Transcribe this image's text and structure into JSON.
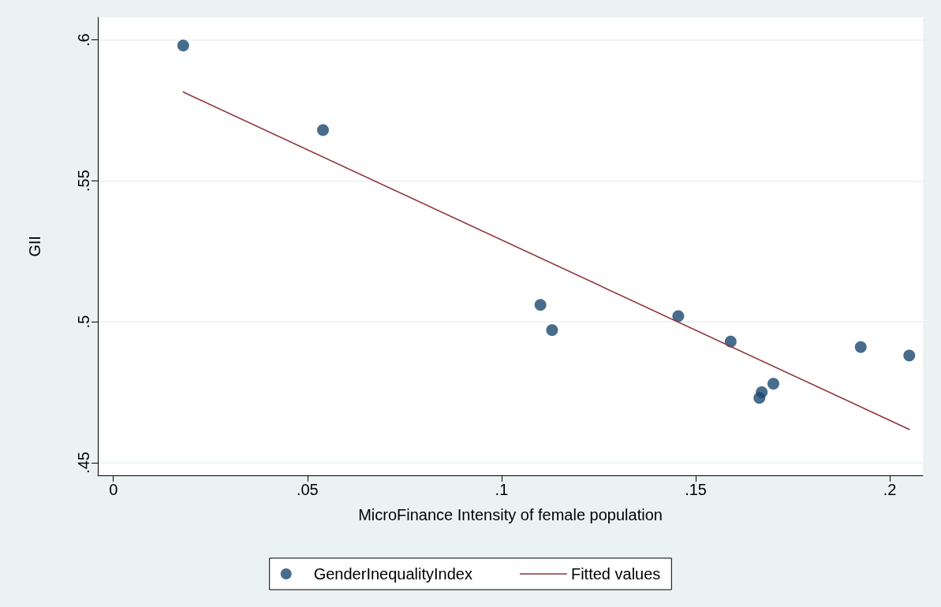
{
  "chart_data": {
    "type": "scatter",
    "xlabel": "MicroFinance Intensity of female population",
    "ylabel": "GII",
    "xlim": [
      -0.004,
      0.2085
    ],
    "ylim": [
      0.4455,
      0.608
    ],
    "xticks": [
      {
        "value": 0,
        "label": "0"
      },
      {
        "value": 0.05,
        "label": ".05"
      },
      {
        "value": 0.1,
        "label": ".1"
      },
      {
        "value": 0.15,
        "label": ".15"
      },
      {
        "value": 0.2,
        "label": ".2"
      }
    ],
    "yticks": [
      {
        "value": 0.45,
        "label": ".45"
      },
      {
        "value": 0.5,
        "label": ".5"
      },
      {
        "value": 0.55,
        "label": ".55"
      },
      {
        "value": 0.6,
        "label": ".6"
      }
    ],
    "grid": "y",
    "legend": "bottom",
    "series": [
      {
        "name": "GenderInequalityIndex",
        "type": "scatter",
        "marker": "circle",
        "color": "#1a476f",
        "x": [
          0.018,
          0.054,
          0.11,
          0.113,
          0.1455,
          0.159,
          0.1664,
          0.167,
          0.17,
          0.1925,
          0.205
        ],
        "values": [
          0.598,
          0.568,
          0.506,
          0.497,
          0.502,
          0.493,
          0.473,
          0.475,
          0.478,
          0.491,
          0.488
        ]
      },
      {
        "name": "Fitted values",
        "type": "line",
        "marker": "none",
        "line_style": "solid",
        "color": "#90353b",
        "x": [
          0.018,
          0.205
        ],
        "values": [
          0.5815,
          0.4618
        ]
      }
    ]
  }
}
